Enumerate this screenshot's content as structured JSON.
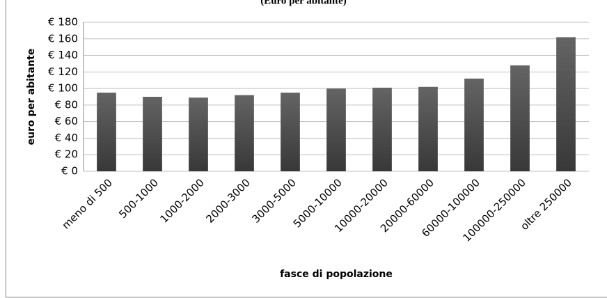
{
  "chart_data": {
    "type": "bar",
    "title": "(Euro per abitante)",
    "y_label": "euro per abitante",
    "x_label": "fasce di popolazione",
    "categories": [
      "meno di 500",
      "500-1000",
      "1000-2000",
      "2000-3000",
      "3000-5000",
      "5000-10000",
      "10000-20000",
      "20000-60000",
      "60000-100000",
      "100000-250000",
      "oltre 250000"
    ],
    "values": [
      95,
      90,
      89,
      92,
      95,
      100,
      101,
      102,
      112,
      128,
      162
    ],
    "color": "#4a4a4a",
    "ylim": [
      0,
      180
    ],
    "yticks": [
      {
        "value": 0,
        "label": "€ 0"
      },
      {
        "value": 20,
        "label": "€ 20"
      },
      {
        "value": 40,
        "label": "€ 40"
      },
      {
        "value": 60,
        "label": "€ 60"
      },
      {
        "value": 80,
        "label": "€ 80"
      },
      {
        "value": 100,
        "label": "€ 100"
      },
      {
        "value": 120,
        "label": "€ 120"
      },
      {
        "value": 140,
        "label": "€ 140"
      },
      {
        "value": 160,
        "label": "€ 160"
      },
      {
        "value": 180,
        "label": "€ 180"
      }
    ],
    "grid": true
  }
}
